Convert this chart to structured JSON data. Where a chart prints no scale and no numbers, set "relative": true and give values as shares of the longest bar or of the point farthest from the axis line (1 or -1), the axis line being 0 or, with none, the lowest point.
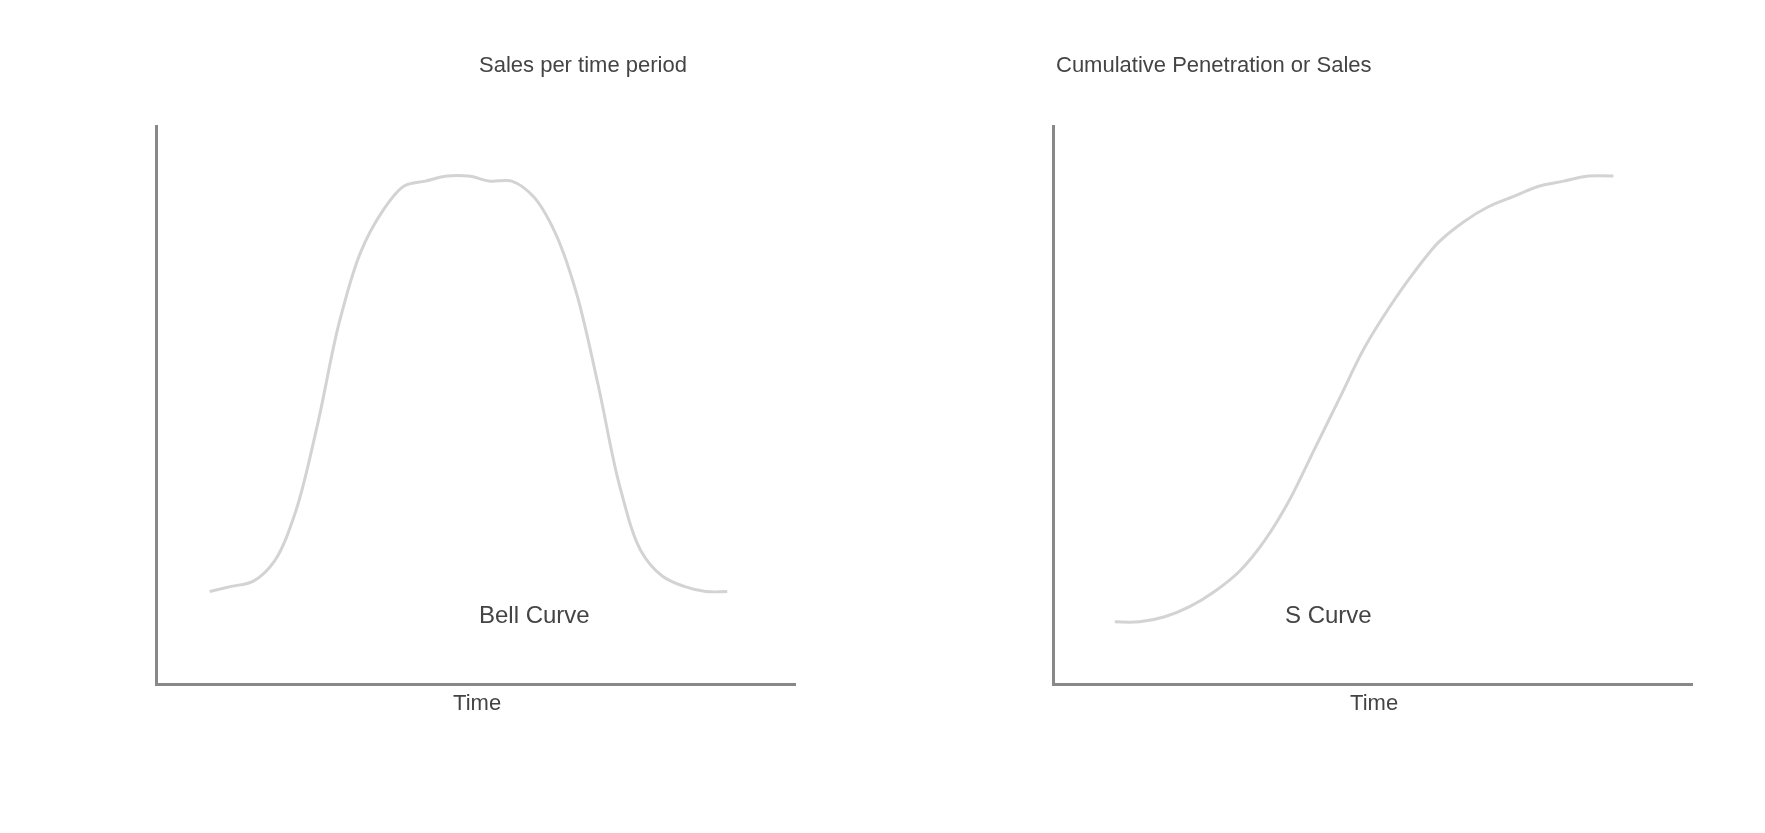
{
  "chart_data": [
    {
      "type": "line",
      "title": "Sales per time period",
      "xlabel": "Time",
      "relative": true,
      "tick_labels": false,
      "color": "#d3d3d3",
      "annotations": [
        "Bell Curve"
      ],
      "categories": [
        null,
        null,
        null,
        null,
        null,
        null,
        null,
        null,
        null,
        null,
        null,
        null,
        null,
        null,
        null,
        null,
        null,
        null,
        null,
        null,
        null,
        null,
        null,
        null,
        null
      ],
      "values": [
        0.18,
        0.19,
        0.2,
        0.24,
        0.34,
        0.51,
        0.71,
        0.85,
        0.93,
        0.98,
        0.99,
        1,
        1,
        0.99,
        0.99,
        0.96,
        0.89,
        0.77,
        0.59,
        0.39,
        0.26,
        0.21,
        0.19,
        0.18,
        0.18
      ]
    },
    {
      "type": "line",
      "title": "Cumulative Penetration or Sales",
      "xlabel": "Time",
      "relative": true,
      "tick_labels": false,
      "color": "#d3d3d3",
      "annotations": [
        "S Curve"
      ],
      "categories": [
        null,
        null,
        null,
        null,
        null,
        null,
        null,
        null,
        null,
        null,
        null,
        null,
        null,
        null,
        null,
        null,
        null,
        null,
        null,
        null,
        null
      ],
      "values": [
        0.12,
        0.12,
        0.13,
        0.15,
        0.18,
        0.22,
        0.28,
        0.36,
        0.46,
        0.56,
        0.66,
        0.74,
        0.81,
        0.87,
        0.91,
        0.94,
        0.96,
        0.98,
        0.99,
        1,
        1
      ]
    }
  ]
}
